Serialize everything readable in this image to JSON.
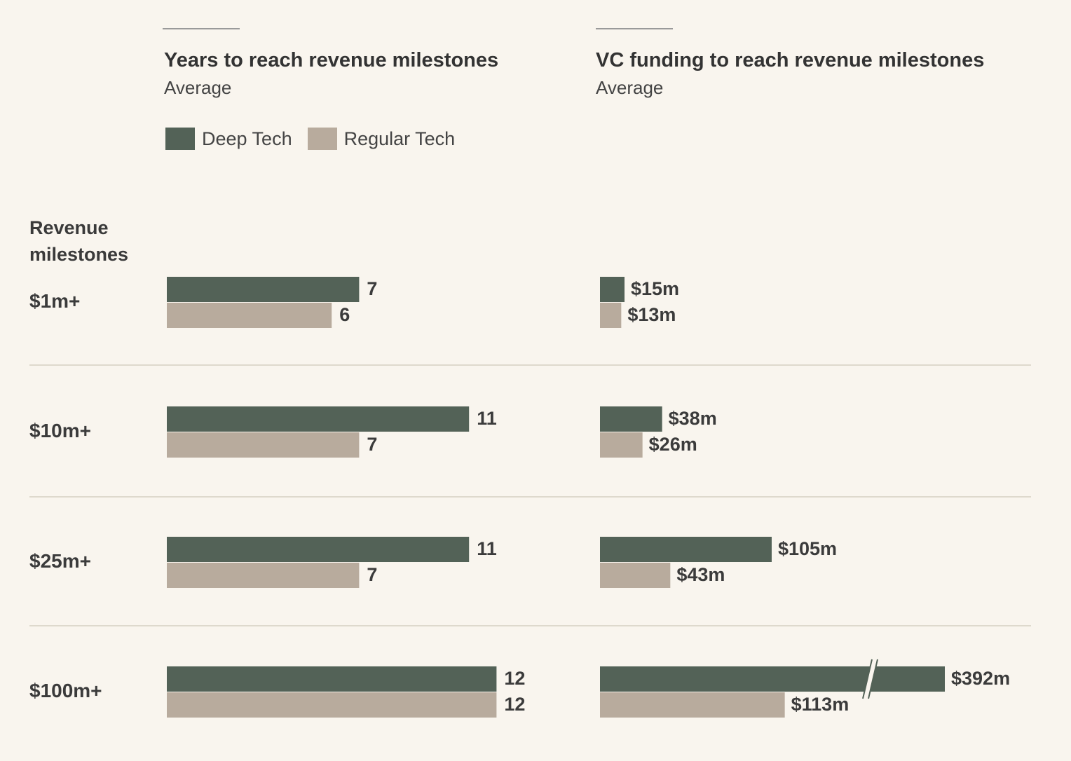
{
  "panels": [
    {
      "title": "Years to reach revenue milestones",
      "subtitle": "Average"
    },
    {
      "title": "VC funding to reach revenue milestones",
      "subtitle": "Average"
    }
  ],
  "legend": [
    {
      "label": "Deep Tech",
      "color": "#536257"
    },
    {
      "label": "Regular Tech",
      "color": "#b8ab9d"
    }
  ],
  "row_header": "Revenue milestones",
  "chart_data": [
    {
      "type": "bar",
      "orientation": "horizontal",
      "title": "Years to reach revenue milestones",
      "subtitle": "Average",
      "categories": [
        "$1m+",
        "$10m+",
        "$25m+",
        "$100m+"
      ],
      "series": [
        {
          "name": "Deep Tech",
          "values": [
            7,
            11,
            11,
            12
          ],
          "labels": [
            "7",
            "11",
            "11",
            "12"
          ]
        },
        {
          "name": "Regular Tech",
          "values": [
            6,
            7,
            7,
            12
          ],
          "labels": [
            "6",
            "7",
            "7",
            "12"
          ]
        }
      ],
      "xlim": [
        0,
        12
      ]
    },
    {
      "type": "bar",
      "orientation": "horizontal",
      "title": "VC funding to reach revenue milestones",
      "subtitle": "Average",
      "categories": [
        "$1m+",
        "$10m+",
        "$25m+",
        "$100m+"
      ],
      "series": [
        {
          "name": "Deep Tech",
          "values": [
            15,
            38,
            105,
            392
          ],
          "labels": [
            "$15m",
            "$38m",
            "$105m",
            "$392m"
          ]
        },
        {
          "name": "Regular Tech",
          "values": [
            13,
            26,
            43,
            113
          ],
          "labels": [
            "$13m",
            "$26m",
            "$43m",
            "$113m"
          ]
        }
      ],
      "unit": "$m",
      "axis_break": {
        "series": "Deep Tech",
        "category": "$100m+"
      }
    }
  ],
  "colors": {
    "deep": "#536257",
    "regular": "#b8ab9d",
    "divider": "#d5d0c2",
    "text": "#3b3b3b"
  }
}
